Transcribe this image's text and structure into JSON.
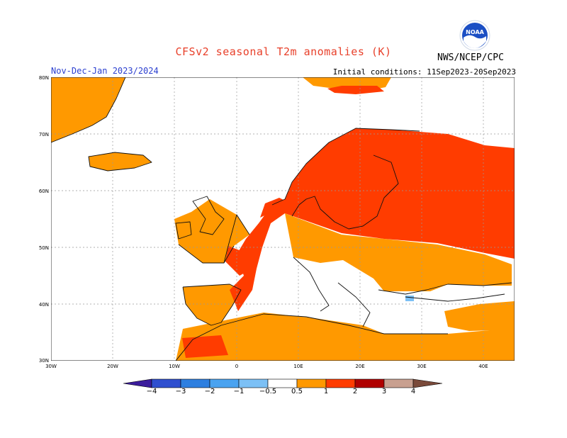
{
  "title": "CFSv2 seasonal T2m anomalies (K)",
  "season": "Nov-Dec-Jan 2023/2024",
  "initial_conditions": "Initial conditions: 11Sep2023-20Sep2023",
  "agency": "NWS/NCEP/CPC",
  "logo_text": "NOAA",
  "lat_labels": [
    "80N",
    "70N",
    "60N",
    "50N",
    "40N",
    "30N"
  ],
  "lon_labels": [
    "30W",
    "20W",
    "10W",
    "0",
    "10E",
    "20E",
    "30E",
    "40E"
  ],
  "colorbar": {
    "ticks": [
      "−4",
      "−3",
      "−2",
      "−1",
      "−0.5",
      "0.5",
      "1",
      "2",
      "3",
      "4"
    ],
    "colors": [
      "#3b1c9c",
      "#2f4fcf",
      "#2d7fe0",
      "#4aa3f0",
      "#7cc0f5",
      "#ffffff",
      "#ff9900",
      "#ff3c00",
      "#b00000",
      "#c8a090",
      "#7a4a3a"
    ]
  }
}
